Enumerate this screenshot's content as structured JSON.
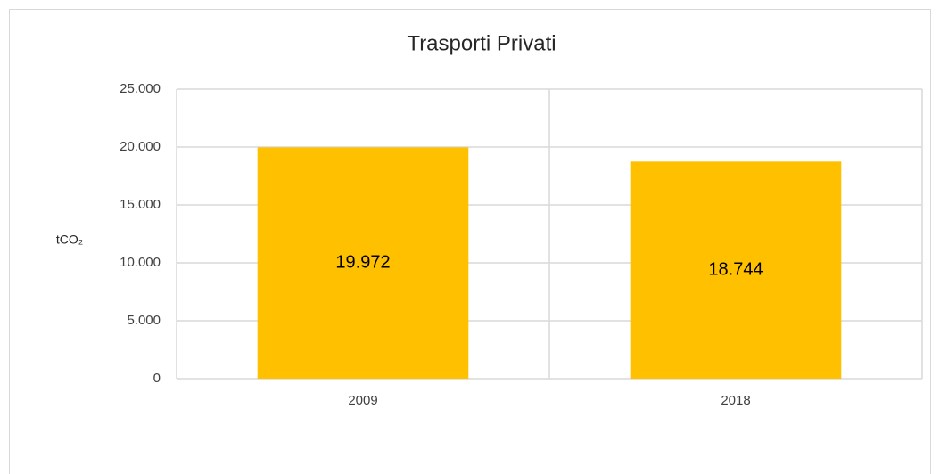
{
  "chart_data": {
    "type": "bar",
    "title": "Trasporti Privati",
    "y_label": "tCO₂",
    "categories": [
      "2009",
      "2018"
    ],
    "values": [
      19972,
      18744
    ],
    "value_labels": [
      "19.972",
      "18.744"
    ],
    "color": "#ffc000",
    "ylim": [
      0,
      25000
    ],
    "yticks": [
      0,
      {
        "value": 5000,
        "label": "5.000"
      },
      {
        "value": 10000,
        "label": "10.000"
      },
      {
        "value": 15000,
        "label": "15.000"
      },
      {
        "value": 20000,
        "label": "20.000"
      },
      {
        "value": 25000,
        "label": "25.000"
      }
    ],
    "grid": true
  }
}
